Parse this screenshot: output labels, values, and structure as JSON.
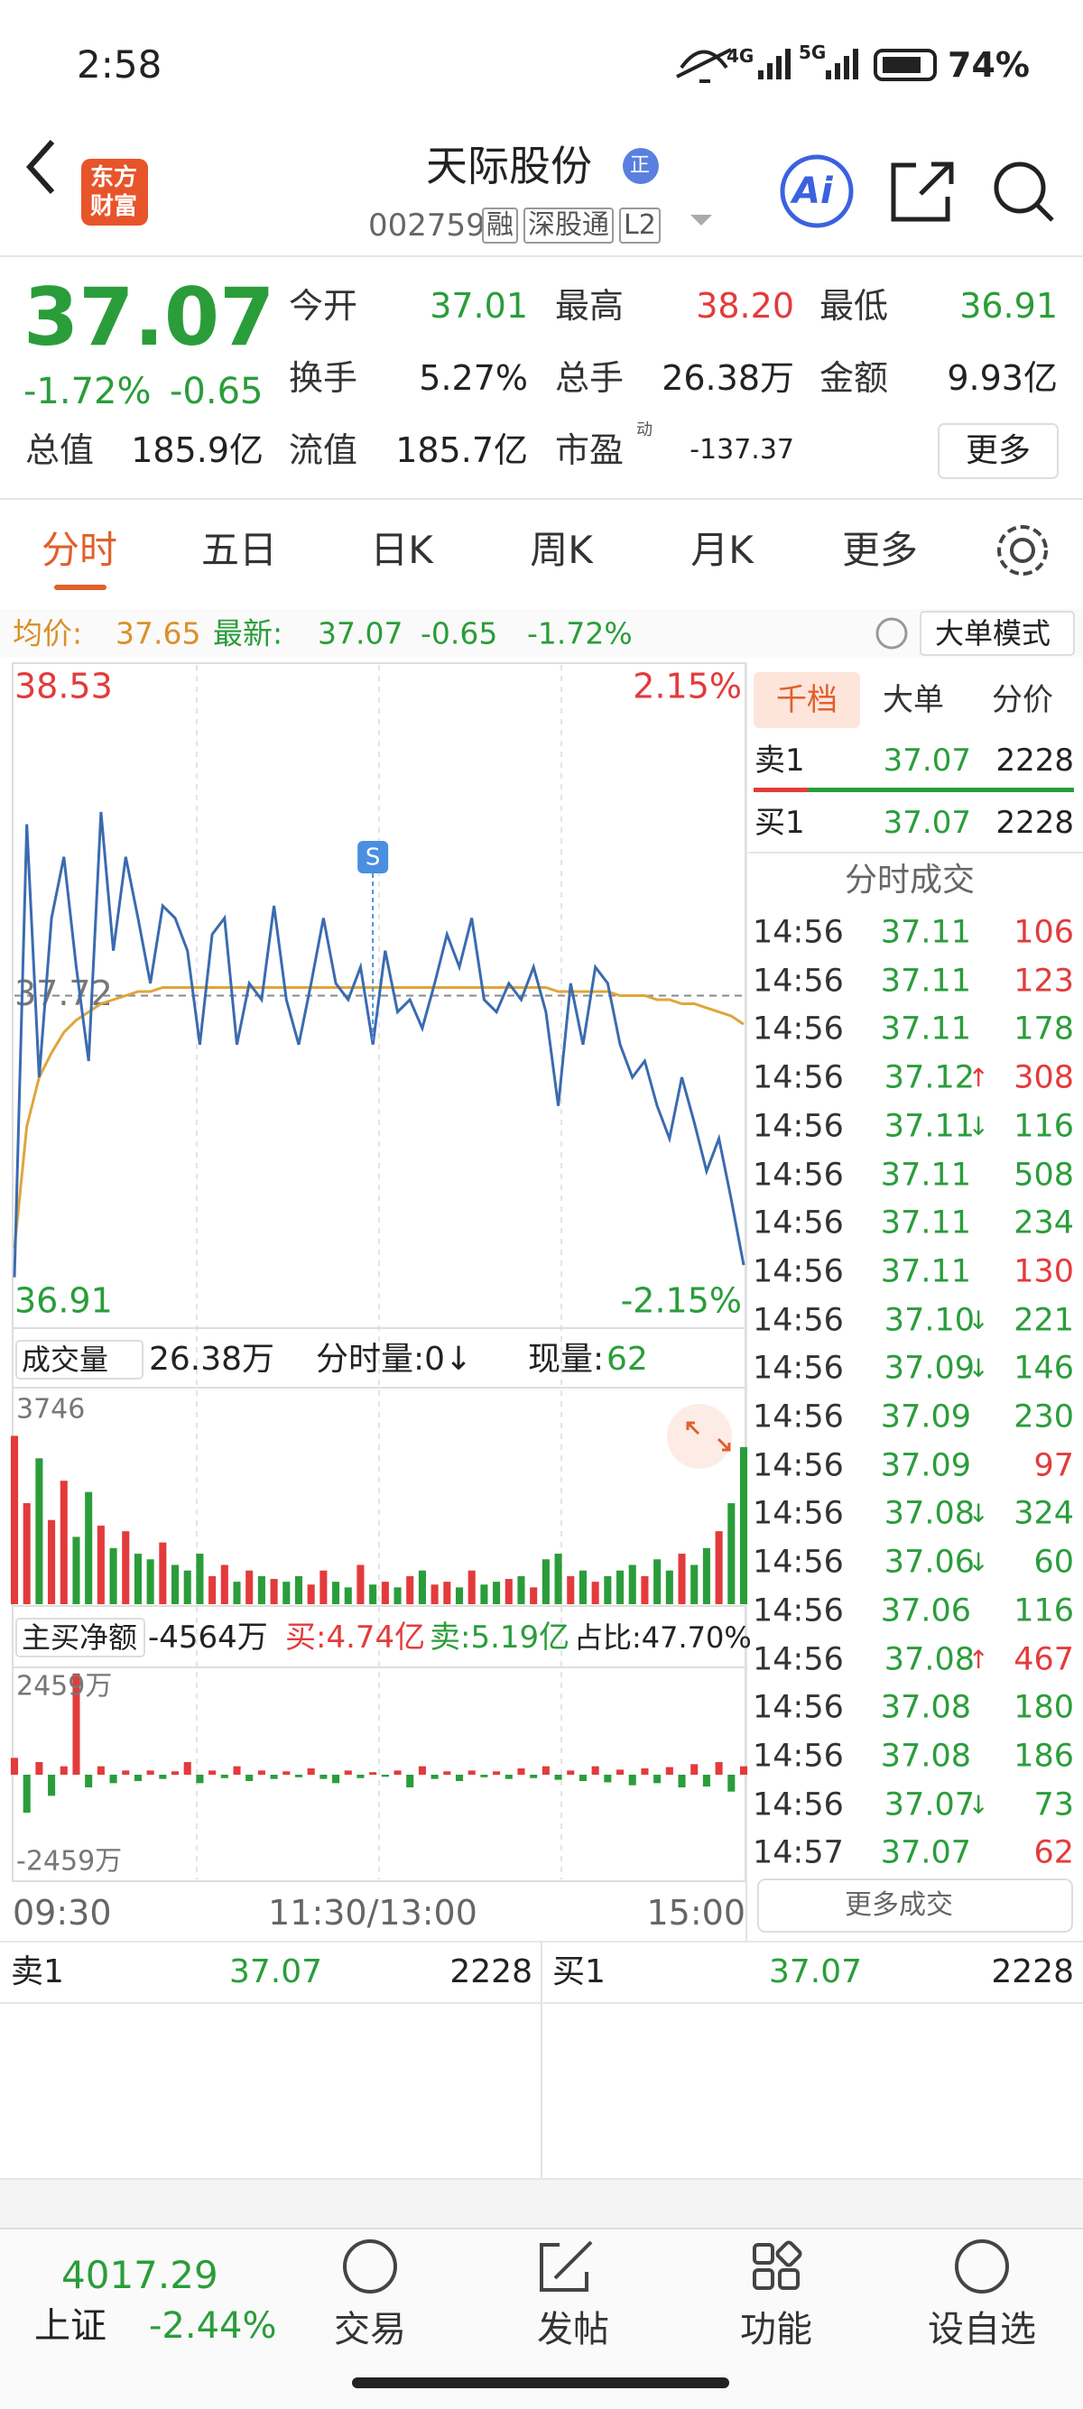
{
  "status": {
    "time": "2:58",
    "net1": "4G",
    "net2": "5G",
    "battery": "74%"
  },
  "header": {
    "logo": [
      "东方",
      "财富"
    ],
    "title": "天际股份",
    "badge": "正",
    "code": "002759",
    "tags": [
      "融",
      "深股通",
      "L2"
    ],
    "ai": "Ai"
  },
  "quote": {
    "price": "37.07",
    "change_pct": "-1.72%",
    "change": "-0.65",
    "stats": [
      {
        "label": "今开",
        "value": "37.01",
        "color": "green"
      },
      {
        "label": "最高",
        "value": "38.20",
        "color": "red"
      },
      {
        "label": "最低",
        "value": "36.91",
        "color": "green"
      },
      {
        "label": "换手",
        "value": "5.27%"
      },
      {
        "label": "总手",
        "value": "26.38万"
      },
      {
        "label": "金额",
        "value": "9.93亿"
      },
      {
        "label": "总值",
        "value": "185.9亿"
      },
      {
        "label": "流值",
        "value": "185.7亿"
      },
      {
        "label": "市盈",
        "sup": "动",
        "value": "-137.37"
      }
    ],
    "more": "更多"
  },
  "tabs": {
    "items": [
      "分时",
      "五日",
      "日K",
      "周K",
      "月K",
      "更多"
    ],
    "active": 0
  },
  "info": {
    "avg_label": "均价:",
    "avg": "37.65",
    "last_label": "最新:",
    "last": "37.07",
    "change": "-0.65",
    "pct": "-1.72%",
    "mode": "大单模式"
  },
  "intraday": {
    "type": "line",
    "ylim": [
      36.91,
      38.53
    ],
    "yticks": [
      38.53,
      37.72,
      36.91
    ],
    "y2lim": [
      -2.15,
      2.15
    ],
    "y2ticks": [
      {
        "value": 2.15,
        "label": "2.15%"
      },
      {
        "value": -2.15,
        "label": "-2.15%"
      }
    ],
    "xlabels": [
      "09:30",
      "11:30/13:00",
      "15:00"
    ],
    "marker": "S",
    "series": [
      {
        "name": "price",
        "color": "#3a6bb0",
        "values": [
          37.03,
          38.14,
          37.52,
          37.91,
          38.06,
          37.79,
          37.56,
          38.17,
          37.83,
          38.06,
          37.91,
          37.75,
          37.94,
          37.91,
          37.83,
          37.6,
          37.87,
          37.91,
          37.6,
          37.75,
          37.71,
          37.94,
          37.71,
          37.6,
          37.75,
          37.91,
          37.75,
          37.71,
          37.79,
          37.6,
          37.83,
          37.68,
          37.71,
          37.64,
          37.75,
          37.87,
          37.79,
          37.91,
          37.71,
          37.68,
          37.75,
          37.71,
          37.79,
          37.68,
          37.45,
          37.75,
          37.6,
          37.79,
          37.75,
          37.6,
          37.52,
          37.56,
          37.45,
          37.37,
          37.52,
          37.41,
          37.29,
          37.37,
          37.22,
          37.06
        ]
      },
      {
        "name": "avg",
        "color": "#e0a53a",
        "values": [
          37.1,
          37.4,
          37.52,
          37.58,
          37.63,
          37.66,
          37.68,
          37.7,
          37.71,
          37.72,
          37.73,
          37.73,
          37.74,
          37.74,
          37.74,
          37.74,
          37.74,
          37.74,
          37.74,
          37.74,
          37.74,
          37.74,
          37.74,
          37.74,
          37.74,
          37.74,
          37.74,
          37.74,
          37.74,
          37.74,
          37.74,
          37.74,
          37.74,
          37.74,
          37.74,
          37.74,
          37.74,
          37.74,
          37.74,
          37.74,
          37.74,
          37.74,
          37.74,
          37.74,
          37.73,
          37.73,
          37.73,
          37.73,
          37.73,
          37.72,
          37.72,
          37.72,
          37.71,
          37.71,
          37.7,
          37.7,
          37.69,
          37.68,
          37.67,
          37.65
        ]
      }
    ]
  },
  "volume": {
    "type": "bar",
    "label": "成交量",
    "total": "26.38万",
    "period": "分时量:0↓",
    "current_label": "现量:",
    "current": "62",
    "ylim": [
      0,
      3746
    ],
    "yticks": [
      3746
    ],
    "values": [
      3000,
      1800,
      2600,
      1500,
      2200,
      1200,
      2000,
      1400,
      1000,
      1300,
      900,
      800,
      1100,
      700,
      600,
      900,
      500,
      700,
      400,
      600,
      500,
      450,
      400,
      500,
      350,
      600,
      400,
      300,
      700,
      350,
      400,
      300,
      500,
      600,
      350,
      400,
      300,
      600,
      350,
      400,
      450,
      500,
      300,
      800,
      900,
      500,
      600,
      400,
      500,
      600,
      700,
      500,
      800,
      600,
      900,
      700,
      1000,
      1300,
      1800,
      2800
    ]
  },
  "netflow": {
    "type": "bar",
    "label": "主买净额",
    "net": "-4564万",
    "buy": "买:4.74亿",
    "sell": "卖:5.19亿",
    "ratio": "占比:47.70%",
    "ylim": [
      -2459,
      2459
    ],
    "yticks": [
      {
        "value": 2459,
        "label": "2459万"
      },
      {
        "value": -2459,
        "label": "-2459万"
      }
    ],
    "values": [
      400,
      -900,
      300,
      -500,
      200,
      2400,
      -300,
      200,
      -200,
      100,
      -150,
      100,
      -100,
      80,
      300,
      -200,
      100,
      -80,
      200,
      -150,
      100,
      -100,
      80,
      -60,
      150,
      -100,
      -200,
      100,
      -80,
      60,
      -50,
      100,
      -300,
      200,
      -100,
      80,
      -150,
      100,
      -60,
      80,
      -100,
      150,
      -80,
      200,
      -120,
      100,
      -150,
      200,
      -180,
      120,
      -250,
      150,
      -200,
      180,
      -300,
      250,
      -280,
      300,
      -400,
      200
    ]
  },
  "book": {
    "tabs": [
      "千档",
      "大单",
      "分价"
    ],
    "ask": {
      "label": "卖1",
      "price": "37.07",
      "vol": "2228"
    },
    "bid": {
      "label": "买1",
      "price": "37.07",
      "vol": "2228"
    }
  },
  "trades": {
    "title": "分时成交",
    "more": "更多成交",
    "rows": [
      {
        "time": "14:56",
        "price": "37.11",
        "vol": "106",
        "vol_color": "red"
      },
      {
        "time": "14:56",
        "price": "37.11",
        "vol": "123",
        "vol_color": "red"
      },
      {
        "time": "14:56",
        "price": "37.11",
        "vol": "178",
        "vol_color": "green"
      },
      {
        "time": "14:56",
        "price": "37.12",
        "arrow": "↑",
        "vol": "308",
        "vol_color": "red"
      },
      {
        "time": "14:56",
        "price": "37.11",
        "arrow": "↓",
        "vol": "116",
        "vol_color": "green"
      },
      {
        "time": "14:56",
        "price": "37.11",
        "vol": "508",
        "vol_color": "green"
      },
      {
        "time": "14:56",
        "price": "37.11",
        "vol": "234",
        "vol_color": "green"
      },
      {
        "time": "14:56",
        "price": "37.11",
        "vol": "130",
        "vol_color": "red"
      },
      {
        "time": "14:56",
        "price": "37.10",
        "arrow": "↓",
        "vol": "221",
        "vol_color": "green"
      },
      {
        "time": "14:56",
        "price": "37.09",
        "arrow": "↓",
        "vol": "146",
        "vol_color": "green"
      },
      {
        "time": "14:56",
        "price": "37.09",
        "vol": "230",
        "vol_color": "green"
      },
      {
        "time": "14:56",
        "price": "37.09",
        "vol": "97",
        "vol_color": "red"
      },
      {
        "time": "14:56",
        "price": "37.08",
        "arrow": "↓",
        "vol": "324",
        "vol_color": "green"
      },
      {
        "time": "14:56",
        "price": "37.06",
        "arrow": "↓",
        "vol": "60",
        "vol_color": "green"
      },
      {
        "time": "14:56",
        "price": "37.06",
        "vol": "116",
        "vol_color": "green"
      },
      {
        "time": "14:56",
        "price": "37.08",
        "arrow": "↑",
        "vol": "467",
        "vol_color": "red"
      },
      {
        "time": "14:56",
        "price": "37.08",
        "vol": "180",
        "vol_color": "green"
      },
      {
        "time": "14:56",
        "price": "37.08",
        "vol": "186",
        "vol_color": "green"
      },
      {
        "time": "14:56",
        "price": "37.07",
        "arrow": "↓",
        "vol": "73",
        "vol_color": "green"
      },
      {
        "time": "14:57",
        "price": "37.07",
        "vol": "62",
        "vol_color": "red"
      }
    ]
  },
  "bottom_book": {
    "ask": {
      "label": "卖1",
      "price": "37.07",
      "vol": "2228"
    },
    "bid": {
      "label": "买1",
      "price": "37.07",
      "vol": "2228"
    }
  },
  "nav": {
    "index_value": "4017.29",
    "index_name": "上证",
    "index_change": "-2.44%",
    "items": [
      "交易",
      "发帖",
      "功能",
      "设自选"
    ]
  }
}
